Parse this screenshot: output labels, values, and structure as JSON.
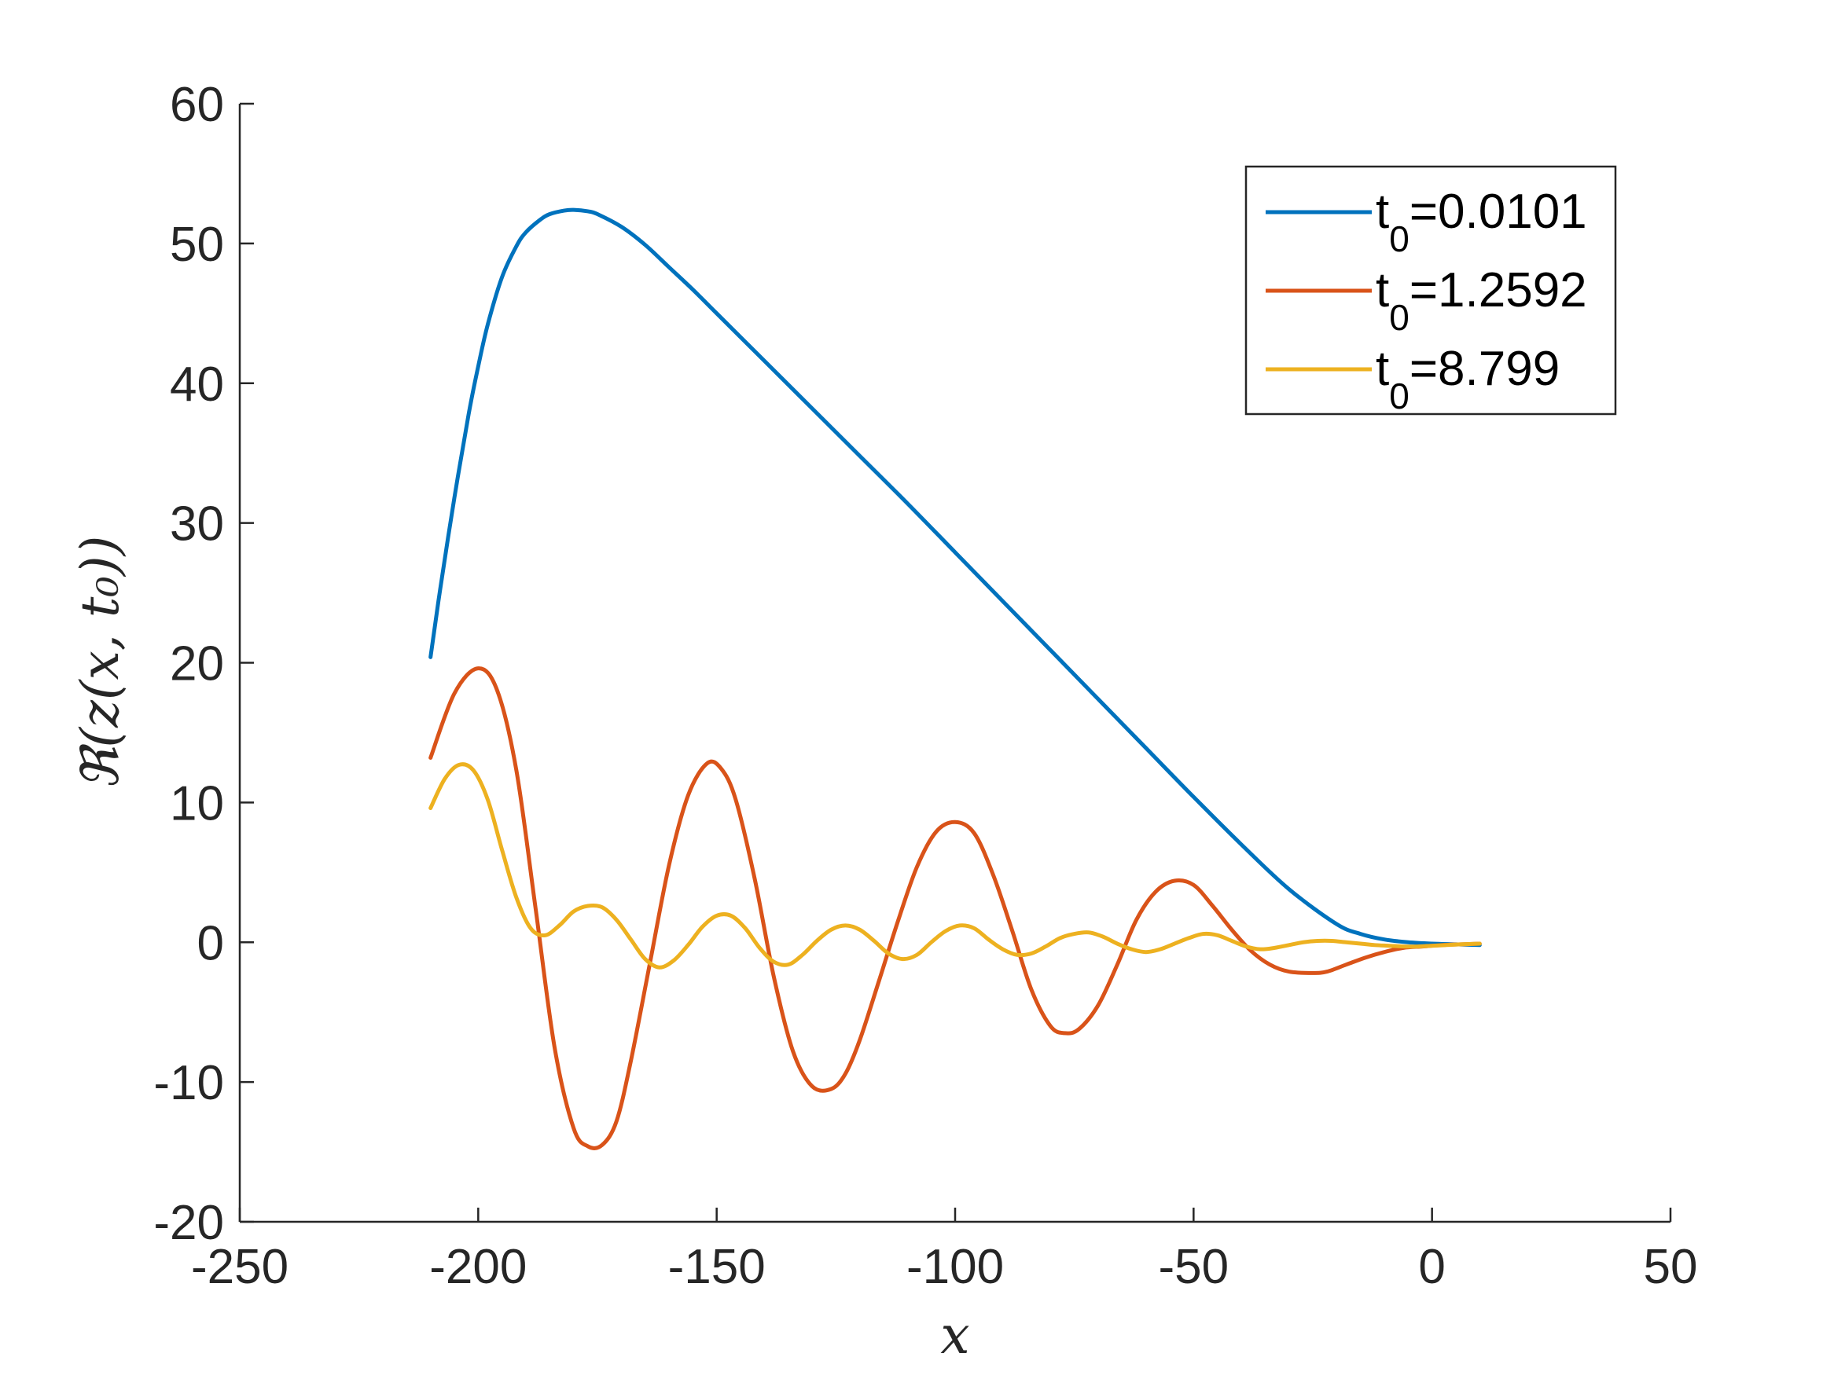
{
  "chart_data": {
    "type": "line",
    "title": "",
    "xlabel": "x",
    "ylabel": "ℜ(z(x, t₀))",
    "xlim": [
      -250,
      50
    ],
    "ylim": [
      -20,
      60
    ],
    "xticks": [
      -250,
      -200,
      -150,
      -100,
      -50,
      0,
      50
    ],
    "yticks": [
      -20,
      -10,
      0,
      10,
      20,
      30,
      40,
      50,
      60
    ],
    "xtick_labels": [
      "-250",
      "-200",
      "-150",
      "-100",
      "-50",
      "0",
      "50"
    ],
    "ytick_labels": [
      "-20",
      "-10",
      "0",
      "10",
      "20",
      "30",
      "40",
      "50",
      "60"
    ],
    "grid": false,
    "legend_position": "top-right",
    "series": [
      {
        "name": "t0=0.0101",
        "legend_base": "t",
        "legend_sub": "0",
        "legend_value": "=0.0101",
        "color": "#0072BD",
        "x": [
          -210,
          -208,
          -205,
          -202,
          -200,
          -198,
          -195,
          -192,
          -190,
          -187,
          -185,
          -182,
          -180,
          -177,
          -175,
          -170,
          -165,
          -160,
          -155,
          -150,
          -140,
          -130,
          -120,
          -110,
          -100,
          -90,
          -80,
          -70,
          -60,
          -50,
          -40,
          -30,
          -20,
          -15,
          -10,
          -5,
          0,
          5,
          10
        ],
        "y": [
          20.4,
          25.2,
          31.8,
          37.8,
          41.2,
          44.2,
          47.6,
          49.8,
          50.8,
          51.7,
          52.1,
          52.35,
          52.4,
          52.3,
          52.1,
          51.2,
          49.9,
          48.3,
          46.7,
          45.0,
          41.6,
          38.2,
          34.8,
          31.4,
          27.9,
          24.4,
          20.9,
          17.4,
          13.9,
          10.4,
          7.0,
          3.8,
          1.3,
          0.6,
          0.2,
          0.0,
          -0.1,
          -0.15,
          -0.2
        ]
      },
      {
        "name": "t0=1.2592",
        "legend_base": "t",
        "legend_sub": "0",
        "legend_value": "=1.2592",
        "color": "#D95319",
        "x": [
          -210,
          -205,
          -200,
          -196,
          -192,
          -188,
          -184,
          -180,
          -177,
          -174,
          -171,
          -168,
          -164,
          -160,
          -156,
          -152,
          -149,
          -146,
          -142,
          -138,
          -134,
          -130,
          -126,
          -123,
          -120,
          -116,
          -112,
          -108,
          -104,
          -100,
          -96,
          -92,
          -88,
          -84,
          -80,
          -77,
          -74,
          -70,
          -66,
          -62,
          -58,
          -54,
          -50,
          -46,
          -42,
          -38,
          -34,
          -30,
          -25,
          -22,
          -18,
          -14,
          -10,
          -6,
          -2,
          2,
          6,
          10
        ],
        "y": [
          13.2,
          17.8,
          19.6,
          18.0,
          12.3,
          2.5,
          -7.5,
          -13.3,
          -14.6,
          -14.5,
          -12.8,
          -8.5,
          -1.5,
          5.5,
          10.5,
          12.8,
          12.4,
          10.2,
          4.5,
          -2.5,
          -7.8,
          -10.3,
          -10.5,
          -9.4,
          -7.0,
          -2.8,
          1.5,
          5.4,
          7.9,
          8.6,
          7.8,
          4.8,
          0.8,
          -3.4,
          -6.0,
          -6.5,
          -6.2,
          -4.5,
          -1.6,
          1.6,
          3.6,
          4.4,
          4.1,
          2.6,
          0.9,
          -0.6,
          -1.6,
          -2.1,
          -2.2,
          -2.1,
          -1.6,
          -1.1,
          -0.7,
          -0.4,
          -0.3,
          -0.2,
          -0.15,
          -0.1
        ]
      },
      {
        "name": "t0=8.799",
        "legend_base": "t",
        "legend_sub": "0",
        "legend_value": "=8.799",
        "color": "#EDB120",
        "x": [
          -210,
          -207,
          -204,
          -201,
          -198,
          -195,
          -192,
          -189,
          -186,
          -183,
          -180,
          -177,
          -174,
          -171,
          -168,
          -165,
          -162,
          -159,
          -156,
          -153,
          -150,
          -147,
          -144,
          -141,
          -138,
          -135,
          -132,
          -129,
          -126,
          -123,
          -120,
          -117,
          -114,
          -111,
          -108,
          -105,
          -102,
          -99,
          -96,
          -93,
          -90,
          -87,
          -84,
          -81,
          -78,
          -75,
          -72,
          -69,
          -66,
          -63,
          -60,
          -57,
          -54,
          -51,
          -48,
          -45,
          -42,
          -39,
          -36,
          -33,
          -30,
          -27,
          -24,
          -21,
          -18,
          -15,
          -12,
          -9,
          -6,
          -3,
          0,
          3,
          6,
          10
        ],
        "y": [
          9.6,
          11.7,
          12.7,
          12.3,
          10.2,
          6.6,
          3.2,
          1.0,
          0.5,
          1.2,
          2.2,
          2.6,
          2.5,
          1.6,
          0.2,
          -1.2,
          -1.8,
          -1.3,
          -0.2,
          1.1,
          1.9,
          1.9,
          1.0,
          -0.4,
          -1.4,
          -1.6,
          -0.9,
          0.1,
          0.9,
          1.2,
          0.9,
          0.1,
          -0.8,
          -1.2,
          -0.9,
          0.0,
          0.8,
          1.2,
          1.0,
          0.2,
          -0.5,
          -0.9,
          -0.8,
          -0.3,
          0.3,
          0.6,
          0.7,
          0.4,
          -0.1,
          -0.5,
          -0.7,
          -0.5,
          -0.1,
          0.3,
          0.6,
          0.5,
          0.1,
          -0.3,
          -0.5,
          -0.4,
          -0.2,
          0.0,
          0.1,
          0.1,
          0.0,
          -0.1,
          -0.2,
          -0.25,
          -0.3,
          -0.3,
          -0.25,
          -0.2,
          -0.15,
          -0.1
        ]
      }
    ]
  }
}
